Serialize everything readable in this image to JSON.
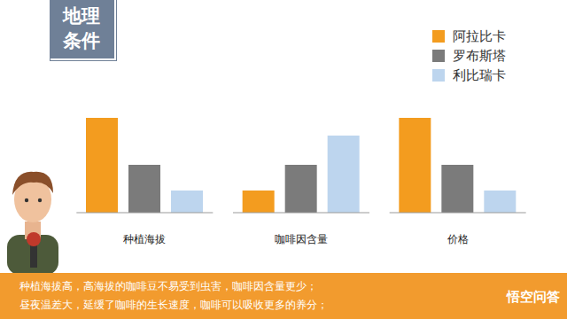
{
  "chart_data": {
    "type": "bar",
    "title": "地理条件",
    "categories": [
      "种植海拔",
      "咖啡因含量",
      "价格"
    ],
    "series": [
      {
        "name": "阿拉比卡",
        "color": "#f39c1f",
        "values": [
          107,
          25,
          107
        ]
      },
      {
        "name": "罗布斯塔",
        "color": "#7b7b7b",
        "values": [
          54,
          54,
          54
        ]
      },
      {
        "name": "利比瑞卡",
        "color": "#bdd5ee",
        "values": [
          25,
          87,
          25
        ]
      }
    ],
    "ylim": [
      0,
      120
    ],
    "tick_labels": "x",
    "legend": "upper right",
    "annotations": [
      "种植海拔高，高海拔的咖啡豆不易受到虫害，咖啡因含量更少；",
      "昼夜温差大，延缓了咖啡的生长速度，咖啡可以吸收更多的养分；"
    ],
    "source": "悟空问答"
  }
}
